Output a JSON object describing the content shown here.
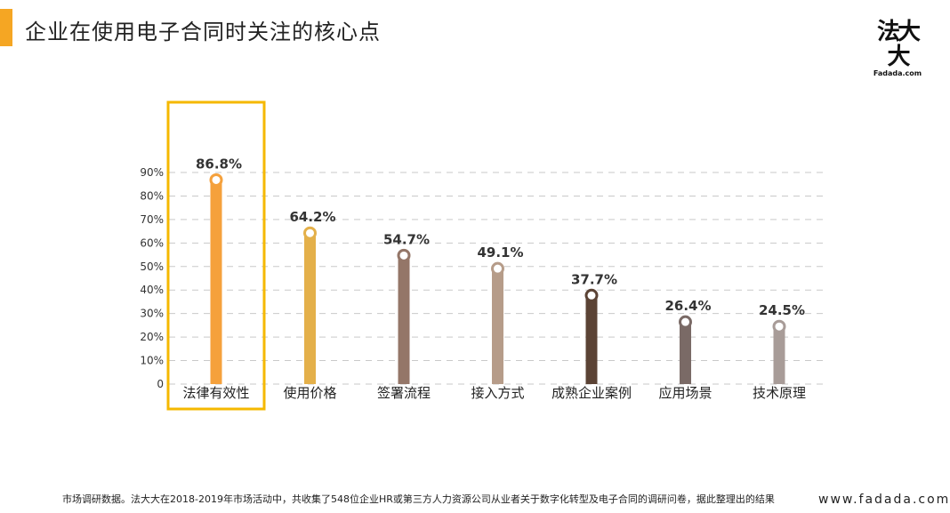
{
  "header": {
    "title": "企业在使用电子合同时关注的核心点"
  },
  "logo": {
    "mark": "法大大",
    "sub": "Fadada.com"
  },
  "chart_data": {
    "type": "bar",
    "categories": [
      "法律有效性",
      "使用价格",
      "签署流程",
      "接入方式",
      "成熟企业案例",
      "应用场景",
      "技术原理"
    ],
    "values": [
      86.8,
      64.2,
      54.7,
      49.1,
      37.7,
      26.4,
      24.5
    ],
    "value_labels": [
      "86.8%",
      "64.2%",
      "54.7%",
      "49.1%",
      "37.7%",
      "26.4%",
      "24.5%"
    ],
    "colors": [
      "#f5a13c",
      "#e4b04a",
      "#947668",
      "#b69c89",
      "#5b4335",
      "#7a6a66",
      "#a89c98"
    ],
    "yticks": [
      "0",
      "10%",
      "20%",
      "30%",
      "40%",
      "50%",
      "60%",
      "70%",
      "80%",
      "90%"
    ],
    "ylim": [
      0,
      90
    ],
    "grid": true,
    "highlight_index": 0,
    "highlight_color": "#f5b800"
  },
  "footer": {
    "note": "市场调研数据。法大大在2018-2019年市场活动中，共收集了548位企业HR或第三方人力资源公司从业者关于数字化转型及电子合同的调研问卷，据此整理出的结果",
    "url": "www.fadada.com"
  }
}
